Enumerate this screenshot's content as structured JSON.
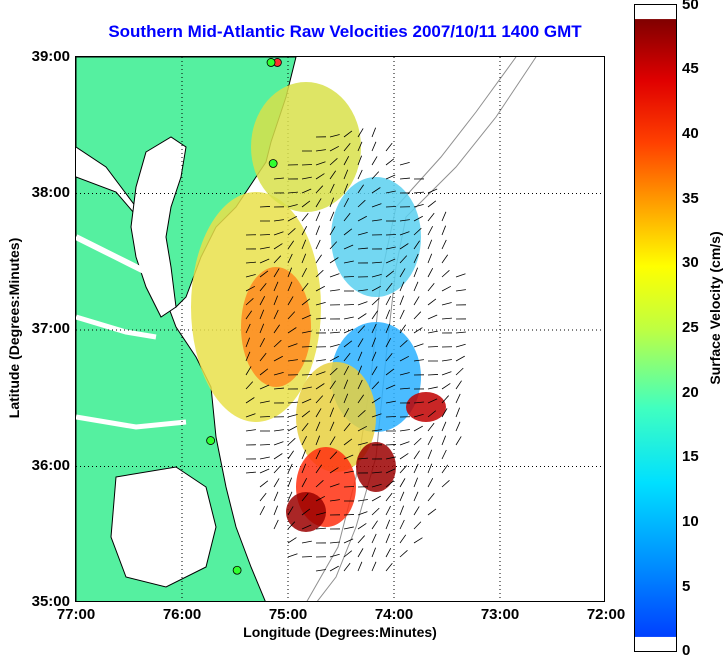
{
  "title": "Southern Mid-Atlantic Raw Velocities 2007/10/11 1400 GMT",
  "axes": {
    "xlabel": "Longitude (Degrees:Minutes)",
    "ylabel": "Latitude (Degrees:Minutes)",
    "x_ticks": [
      "77:00",
      "76:00",
      "75:00",
      "74:00",
      "73:00",
      "72:00"
    ],
    "y_ticks": [
      "39:00",
      "38:00",
      "37:00",
      "36:00",
      "35:00"
    ]
  },
  "colorbar": {
    "label": "Surface Velocity (cm/s)",
    "ticks": [
      "50",
      "45",
      "40",
      "35",
      "30",
      "25",
      "20",
      "15",
      "10",
      "5",
      "0"
    ],
    "range": [
      0,
      50
    ]
  },
  "colors": {
    "land": "#55f0a0",
    "water": "#ffffff",
    "title": "#0000ff",
    "coast": "#000000",
    "bathymetry": "#909090"
  },
  "stations": [
    {
      "lon": -75.1,
      "lat": 38.96,
      "color": "#ff3030"
    },
    {
      "lon": -75.16,
      "lat": 38.96,
      "color": "#30ff30"
    },
    {
      "lon": -75.14,
      "lat": 38.22,
      "color": "#30ff30"
    },
    {
      "lon": -75.73,
      "lat": 36.19,
      "color": "#30ff30"
    },
    {
      "lon": -75.48,
      "lat": 35.24,
      "color": "#30ff30"
    }
  ]
}
